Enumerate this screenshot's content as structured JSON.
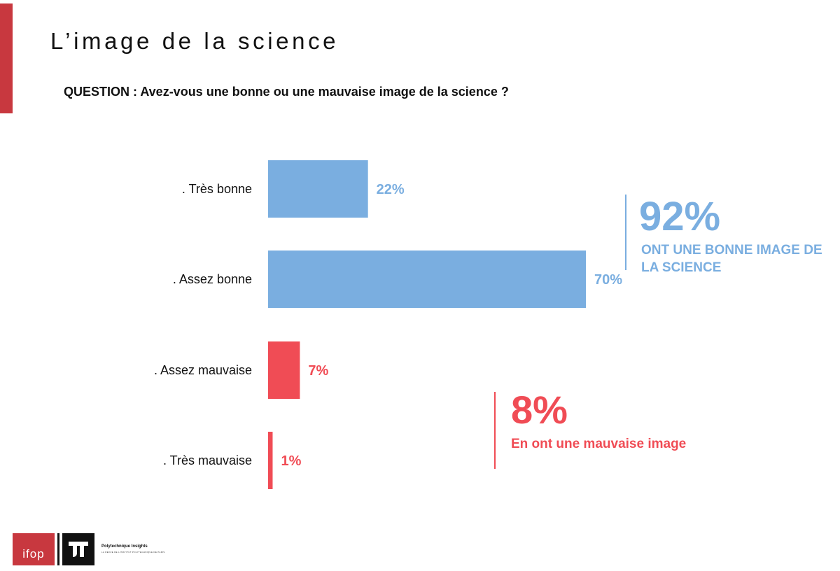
{
  "title": "L’image de la science",
  "question": "QUESTION : Avez-vous une bonne ou une mauvaise image de la science ?",
  "colors": {
    "accent": "#c8383f",
    "positive": "#7aaee0",
    "negative": "#f04c55"
  },
  "chart_data": {
    "type": "bar",
    "orientation": "horizontal",
    "categories": [
      ". Très bonne",
      ". Assez bonne",
      ". Assez mauvaise",
      ". Très mauvaise"
    ],
    "values": [
      22,
      70,
      7,
      1
    ],
    "value_labels": [
      "22%",
      "70%",
      "7%",
      "1%"
    ],
    "colors": [
      "#7aaee0",
      "#7aaee0",
      "#f04c55",
      "#f04c55"
    ],
    "xlim": [
      0,
      100
    ],
    "grid": false,
    "title": "",
    "xlabel": "",
    "ylabel": ""
  },
  "summary": {
    "positive": {
      "value": "92%",
      "text": "ONT UNE BONNE IMAGE DE LA SCIENCE"
    },
    "negative": {
      "value": "8%",
      "text": "En ont une mauvaise image"
    }
  },
  "footer": {
    "logo_ifop": "ifop",
    "logo_pi_name": "Polytechnique Insights",
    "logo_pi_tagline": "LA REVUE DE L'INSTITUT POLYTECHNIQUE DE PARIS"
  }
}
